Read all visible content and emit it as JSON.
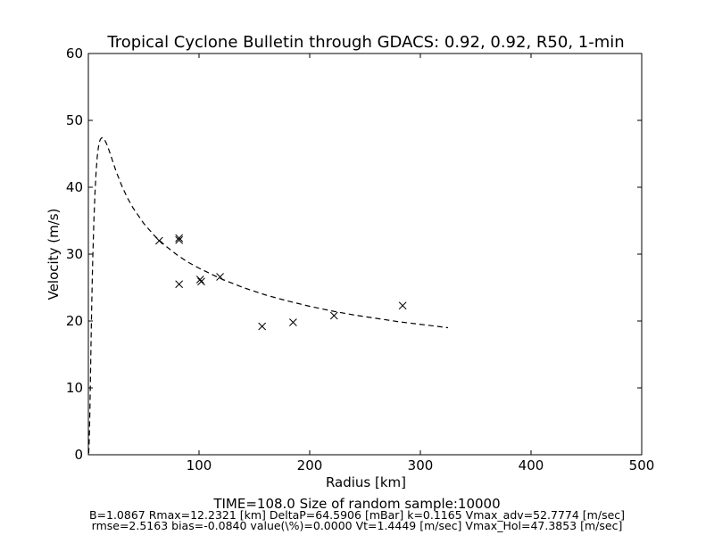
{
  "chart_data": {
    "type": "scatter",
    "title": "Tropical Cyclone Bulletin through GDACS: 0.92, 0.92, R50, 1-min",
    "xlabel": "Radius [km]",
    "ylabel": "Velocity (m/s)",
    "xlim": [
      0,
      500
    ],
    "ylim": [
      0,
      60
    ],
    "xticks": [
      100,
      200,
      300,
      400,
      500
    ],
    "yticks": [
      0,
      10,
      20,
      30,
      40,
      50,
      60
    ],
    "grid": false,
    "colors": {
      "marker": "#000000",
      "curve": "#000000",
      "axes": "#000000",
      "background": "#ffffff"
    },
    "series": [
      {
        "type": "scatter",
        "marker": "x",
        "points": [
          [
            64,
            32.0
          ],
          [
            82,
            32.4
          ],
          [
            82,
            32.1
          ],
          [
            82,
            25.5
          ],
          [
            101,
            26.2
          ],
          [
            102,
            25.9
          ],
          [
            119,
            26.6
          ],
          [
            157,
            19.2
          ],
          [
            185,
            19.8
          ],
          [
            222,
            20.8
          ],
          [
            284,
            22.3
          ]
        ]
      },
      {
        "type": "line",
        "style": "dashed",
        "points": [
          [
            0.3,
            0.2
          ],
          [
            0.6,
            1.2
          ],
          [
            1.0,
            3.5
          ],
          [
            1.5,
            7.5
          ],
          [
            2.0,
            12.5
          ],
          [
            2.5,
            17.5
          ],
          [
            3.0,
            22.0
          ],
          [
            3.5,
            26.0
          ],
          [
            4.0,
            29.5
          ],
          [
            5.0,
            35.0
          ],
          [
            6.0,
            39.2
          ],
          [
            7.0,
            42.3
          ],
          [
            8.0,
            44.5
          ],
          [
            9.0,
            45.9
          ],
          [
            10.0,
            46.8
          ],
          [
            11.0,
            47.2
          ],
          [
            12.2,
            47.4
          ],
          [
            13.0,
            47.4
          ],
          [
            14.0,
            47.3
          ],
          [
            15.0,
            47.0
          ],
          [
            17.0,
            46.3
          ],
          [
            20.0,
            44.9
          ],
          [
            25.0,
            42.4
          ],
          [
            30.0,
            40.3
          ],
          [
            35.0,
            38.5
          ],
          [
            40.0,
            37.0
          ],
          [
            50.0,
            34.6
          ],
          [
            60.0,
            32.7
          ],
          [
            70.0,
            31.2
          ],
          [
            80.0,
            29.9
          ],
          [
            90.0,
            28.8
          ],
          [
            100.0,
            27.9
          ],
          [
            120.0,
            26.3
          ],
          [
            140.0,
            25.0
          ],
          [
            160.0,
            23.9
          ],
          [
            180.0,
            23.0
          ],
          [
            200.0,
            22.2
          ],
          [
            220.0,
            21.5
          ],
          [
            240.0,
            20.9
          ],
          [
            260.0,
            20.4
          ],
          [
            280.0,
            19.9
          ],
          [
            300.0,
            19.5
          ],
          [
            325.0,
            19.0
          ]
        ]
      }
    ]
  },
  "footer": {
    "line1": "TIME=108.0     Size of random sample:10000",
    "line2": "B=1.0867 Rmax=12.2321 [km]  DeltaP=64.5906 [mBar] k=0.1165 Vmax_adv=52.7774 [m/sec]",
    "line3": "rmse=2.5163 bias=-0.0840 value(\\%)=0.0000 Vt=1.4449 [m/sec] Vmax_Hol=47.3853 [m/sec]"
  }
}
